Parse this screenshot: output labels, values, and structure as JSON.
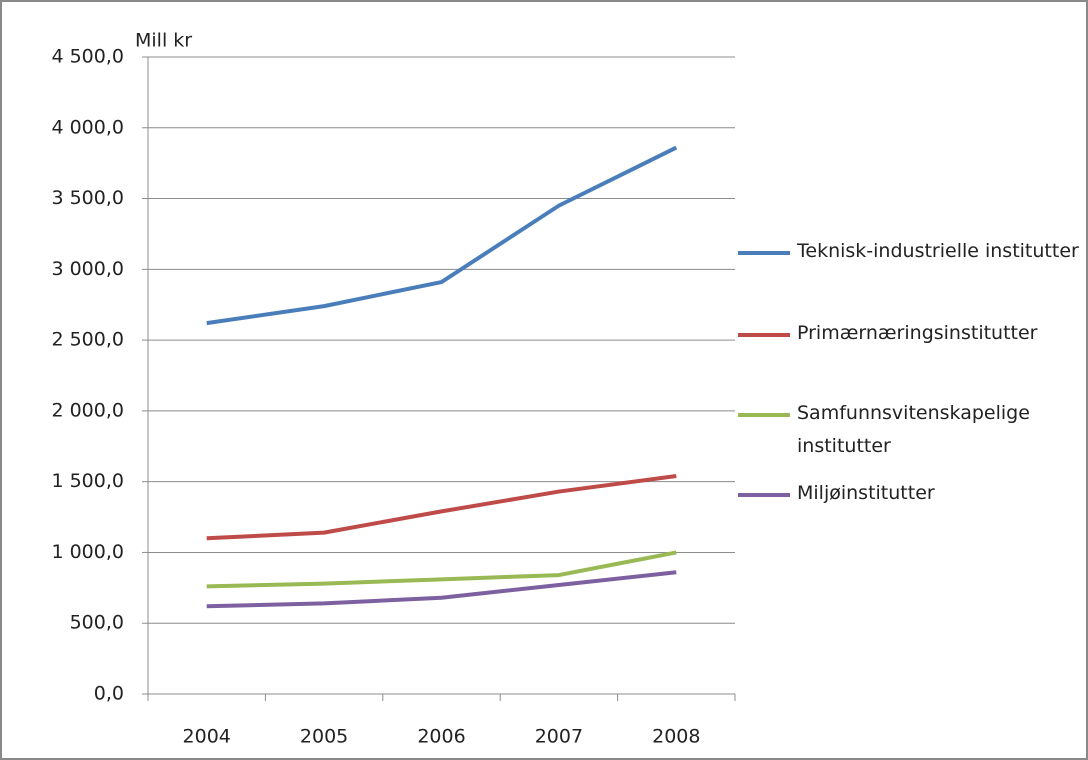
{
  "chart_data": {
    "type": "line",
    "y_label": "Mill kr",
    "categories": [
      "2004",
      "2005",
      "2006",
      "2007",
      "2008"
    ],
    "series": [
      {
        "name": "Teknisk-industrielle institutter",
        "color": "#4a7ebb",
        "values": [
          2620,
          2740,
          2910,
          3450,
          3860
        ]
      },
      {
        "name": "Primærnæringsinstitutter",
        "color": "#be4b48",
        "values": [
          1100,
          1140,
          1290,
          1430,
          1540
        ]
      },
      {
        "name": "Samfunnsvitenskapelige institutter",
        "color": "#98b954",
        "values": [
          760,
          780,
          810,
          840,
          1000
        ]
      },
      {
        "name": "Miljøinstitutter",
        "color": "#7d60a0",
        "values": [
          620,
          640,
          680,
          770,
          860
        ]
      }
    ],
    "ylim": [
      0,
      4500
    ],
    "yticks": [
      {
        "value": 0,
        "label": "0,0"
      },
      {
        "value": 500,
        "label": "500,0"
      },
      {
        "value": 1000,
        "label": "1 000,0"
      },
      {
        "value": 1500,
        "label": "1 500,0"
      },
      {
        "value": 2000,
        "label": "2 000,0"
      },
      {
        "value": 2500,
        "label": "2 500,0"
      },
      {
        "value": 3000,
        "label": "3 000,0"
      },
      {
        "value": 3500,
        "label": "3 500,0"
      },
      {
        "value": 4000,
        "label": "4 000,0"
      },
      {
        "value": 4500,
        "label": "4 500,0"
      }
    ],
    "grid": true
  }
}
